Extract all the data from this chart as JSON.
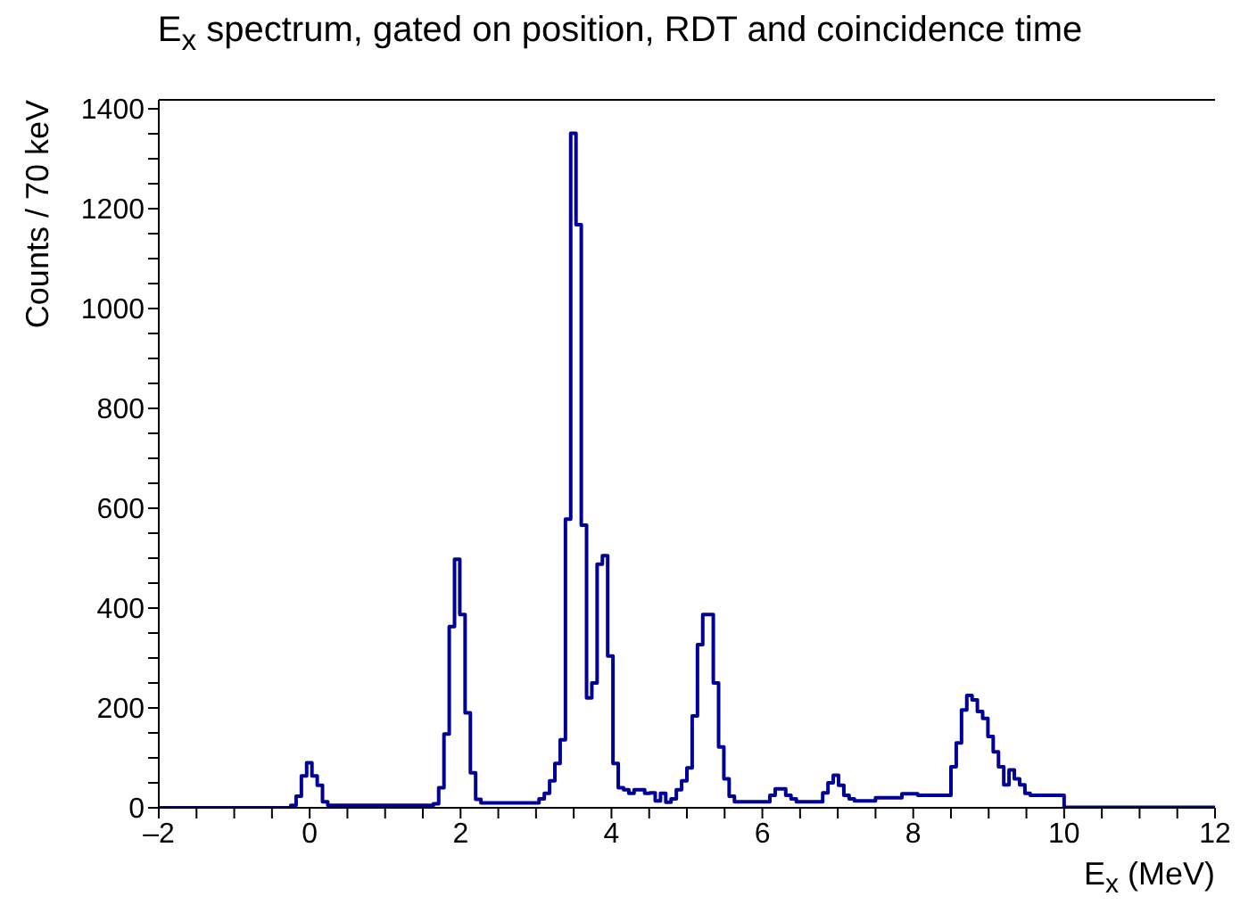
{
  "chart_data": {
    "type": "histogram",
    "title": "E$_{x}$ spectrum, gated on position, RDT and coincidence time",
    "xlabel": "E$_{x}$ (MeV)",
    "ylabel": "Counts / 70 keV",
    "color": "#000099",
    "bins": [
      -2,
      -0.25,
      -0.18,
      -0.11,
      -0.04,
      0.03,
      0.1,
      0.17,
      0.24,
      1.64,
      1.71,
      1.78,
      1.85,
      1.92,
      1.99,
      2.06,
      2.13,
      2.2,
      2.27,
      3.04,
      3.11,
      3.18,
      3.25,
      3.32,
      3.39,
      3.46,
      3.53,
      3.6,
      3.67,
      3.74,
      3.81,
      3.88,
      3.95,
      4.02,
      4.09,
      4.16,
      4.23,
      4.3,
      4.37,
      4.44,
      4.51,
      4.58,
      4.65,
      4.72,
      4.79,
      4.86,
      4.93,
      5.0,
      5.07,
      5.14,
      5.21,
      5.28,
      5.35,
      5.42,
      5.49,
      5.56,
      5.63,
      6.1,
      6.17,
      6.24,
      6.31,
      6.38,
      6.45,
      6.8,
      6.87,
      6.94,
      7.01,
      7.08,
      7.15,
      7.22,
      7.5,
      7.85,
      8.06,
      8.5,
      8.57,
      8.64,
      8.71,
      8.78,
      8.85,
      8.92,
      8.99,
      9.06,
      9.13,
      9.2,
      9.27,
      9.34,
      9.41,
      9.48,
      9.55,
      10.0,
      12
    ],
    "values": [
      0,
      5,
      23,
      64,
      90,
      64,
      45,
      12,
      5,
      8,
      40,
      148,
      363,
      498,
      387,
      190,
      70,
      17,
      10,
      18,
      29,
      54,
      89,
      136,
      578,
      1351,
      1168,
      566,
      220,
      250,
      488,
      505,
      304,
      89,
      40,
      36,
      29,
      36,
      36,
      29,
      30,
      14,
      29,
      11,
      18,
      36,
      54,
      80,
      184,
      327,
      387,
      387,
      250,
      122,
      58,
      23,
      12,
      25,
      38,
      38,
      25,
      18,
      12,
      30,
      50,
      65,
      45,
      25,
      18,
      14,
      20,
      28,
      25,
      82,
      130,
      196,
      225,
      216,
      193,
      179,
      143,
      112,
      82,
      46,
      76,
      58,
      46,
      29,
      25,
      1
    ],
    "xlim": [
      -2,
      12
    ],
    "xticks": [
      {
        "value": -2,
        "label": "–2"
      },
      {
        "value": -1.5,
        "label": null
      },
      {
        "value": -1,
        "label": null
      },
      {
        "value": -0.5,
        "label": null
      },
      0,
      {
        "value": 0.5,
        "label": null
      },
      {
        "value": 1,
        "label": null
      },
      {
        "value": 1.5,
        "label": null
      },
      2,
      {
        "value": 2.5,
        "label": null
      },
      {
        "value": 3,
        "label": null
      },
      {
        "value": 3.5,
        "label": null
      },
      4,
      {
        "value": 4.5,
        "label": null
      },
      {
        "value": 5,
        "label": null
      },
      {
        "value": 5.5,
        "label": null
      },
      6,
      {
        "value": 6.5,
        "label": null
      },
      {
        "value": 7,
        "label": null
      },
      {
        "value": 7.5,
        "label": null
      },
      8,
      {
        "value": 8.5,
        "label": null
      },
      {
        "value": 9,
        "label": null
      },
      {
        "value": 9.5,
        "label": null
      },
      10,
      {
        "value": 10.5,
        "label": null
      },
      {
        "value": 11,
        "label": null
      },
      {
        "value": 11.5,
        "label": null
      },
      12
    ],
    "ylim": [
      0,
      1418
    ],
    "yticks": [
      0,
      {
        "value": 50,
        "label": null
      },
      {
        "value": 100,
        "label": null
      },
      {
        "value": 150,
        "label": null
      },
      200,
      {
        "value": 250,
        "label": null
      },
      {
        "value": 300,
        "label": null
      },
      {
        "value": 350,
        "label": null
      },
      400,
      {
        "value": 450,
        "label": null
      },
      {
        "value": 500,
        "label": null
      },
      {
        "value": 550,
        "label": null
      },
      600,
      {
        "value": 650,
        "label": null
      },
      {
        "value": 700,
        "label": null
      },
      {
        "value": 750,
        "label": null
      },
      800,
      {
        "value": 850,
        "label": null
      },
      {
        "value": 900,
        "label": null
      },
      {
        "value": 950,
        "label": null
      },
      1000,
      {
        "value": 1050,
        "label": null
      },
      {
        "value": 1100,
        "label": null
      },
      {
        "value": 1150,
        "label": null
      },
      1200,
      {
        "value": 1250,
        "label": null
      },
      {
        "value": 1300,
        "label": null
      },
      {
        "value": 1350,
        "label": null
      },
      1400
    ],
    "grid": false
  }
}
